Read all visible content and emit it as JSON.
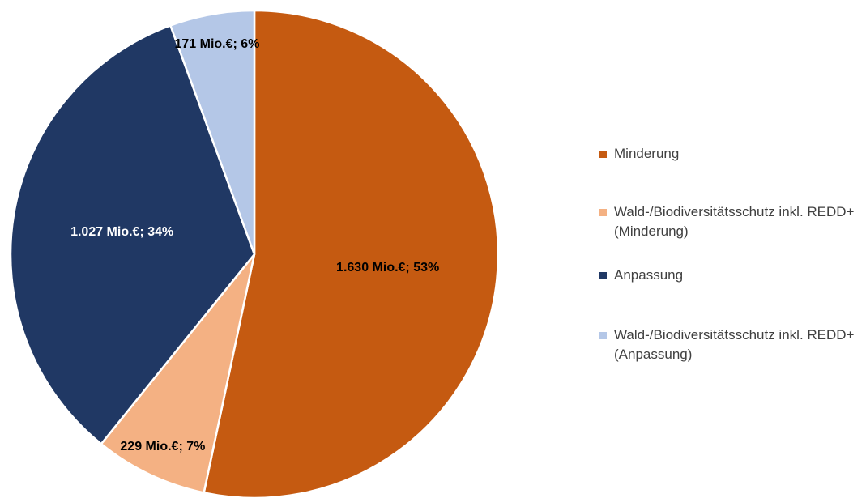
{
  "chart_data": {
    "type": "pie",
    "categories": [
      "Minderung",
      "Wald-/Biodiversitätsschutz inkl. REDD+ (Minderung)",
      "Anpassung",
      "Wald-/Biodiversitätsschutz inkl. REDD+ (Anpassung)"
    ],
    "values": [
      1630,
      229,
      1027,
      171
    ],
    "value_labels": [
      "1.630 Mio.€; 53%",
      "229 Mio.€; 7%",
      "1.027 Mio.€; 34%",
      "171 Mio.€; 6%"
    ],
    "colors": [
      "#c55a11",
      "#f4b183",
      "#203864",
      "#b4c7e7"
    ],
    "legend": "right"
  }
}
